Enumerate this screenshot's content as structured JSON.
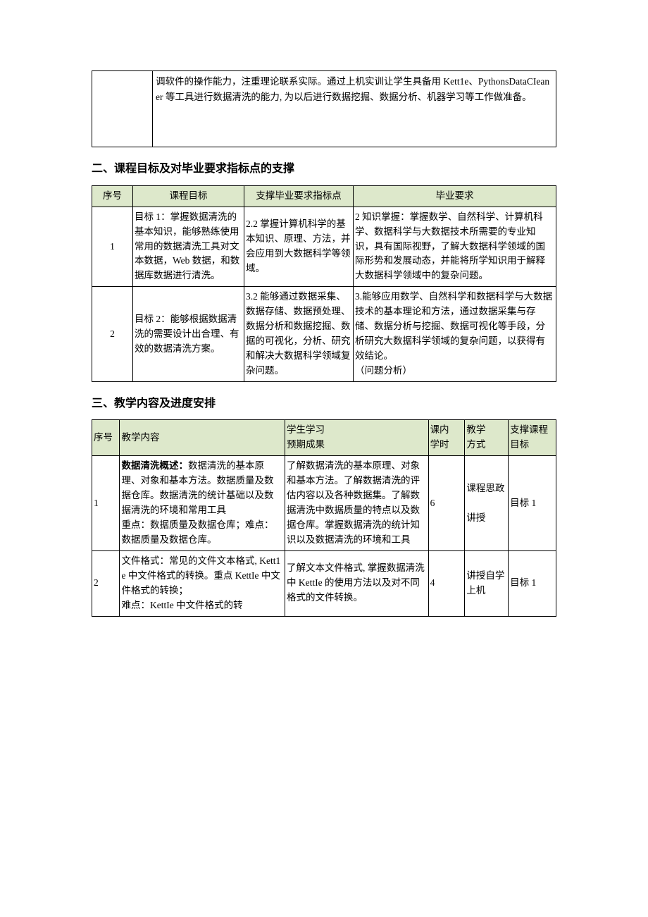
{
  "colors": {
    "header_bg": "#dde8cb",
    "border": "#000000",
    "text": "#000000",
    "page_bg": "#ffffff"
  },
  "typography": {
    "body_family": "SimSun",
    "body_size_pt": 10.5,
    "heading_size_pt": 12,
    "heading_weight": "bold"
  },
  "topbox": {
    "text": "调软件的操作能力，注重理论联系实际。通过上机实训让学生具备用 Kett1e、PythonsDataCIeaner 等工具进行数据清洗的能力, 为以后进行数据挖掘、数据分析、机器学习等工作做准备。"
  },
  "section2": {
    "title": "二、课程目标及对毕业要求指标点的支撑",
    "headers": [
      "序号",
      "课程目标",
      "支撑毕业要求指标点",
      "毕业要求"
    ],
    "rows": [
      {
        "no": "1",
        "goal": "目标 1：掌握数据清洗的基本知识，能够熟练使用常用的数据清洗工具对文本数据，Web 数据，和数据库数据进行清洗。",
        "support": "2.2 掌握计算机科学的基本知识、原理、方法，并会应用到大数据科学等领域。",
        "req": "2 知识掌握：掌握数学、自然科学、计算机科学、数据科学与大数据技术所需要的专业知识，具有国际视野，了解大数据科学领域的国际形势和发展动态，并能将所学知识用于解释大数据科学领域中的复杂问题。"
      },
      {
        "no": "2",
        "goal": "目标 2：能够根据数据清洗的需要设计出合理、有效的数据清洗方案。",
        "support": "3.2 能够通过数据采集、数据存储、数据预处理、数据分析和数据挖掘、数据的可视化，分析、研究和解决大数据科学领域复杂问题。",
        "req": "3.能够应用数学、自然科学和数据科学与大数据技术的基本理论和方法，通过数据采集与存储、数据分析与挖掘、数据可视化等手段，分析研究大数据科学领域的复杂问题，以获得有效结论。\n（问题分析）"
      }
    ]
  },
  "section3": {
    "title": "三、教学内容及进度安排",
    "headers": [
      "序号",
      "教学内容",
      "学生学习\n预期成果",
      "课内\n学时",
      "教学\n方式",
      "支撑课程目标"
    ],
    "rows": [
      {
        "no": "1",
        "content_bold": "数据清洗概述：",
        "content_rest": "数据清洗的基本原理、对象和基本方法。数据质量及数据仓库。数据清洗的统计基础以及数据清洗的环境和常用工具\n重点：数据质量及数据仓库；难点：数据质量及数据仓库。",
        "outcome": "了解数据清洗的基本原理、对象和基本方法。了解数据清洗的评估内容以及各种数据集。了解数据清洗中数据质量的特点以及数据仓库。掌握数据清洗的统计知识以及数据清洗的环境和工具",
        "hours": "6",
        "mode": "课程思政\n\n讲授",
        "support": "目标 1"
      },
      {
        "no": "2",
        "content_bold": "",
        "content_rest": "文件格式：常见的文件文本格式, Kett1e 中文件格式的转换。重点 KettIe 中文件格式的转换；\n难点：KettIe 中文件格式的转",
        "outcome": "了解文本文件格式, 掌握数据清洗中 KettIe 的使用方法以及对不同格式的文件转换。",
        "hours": "4",
        "mode": "讲授自学上机",
        "support": "目标 1"
      }
    ]
  }
}
